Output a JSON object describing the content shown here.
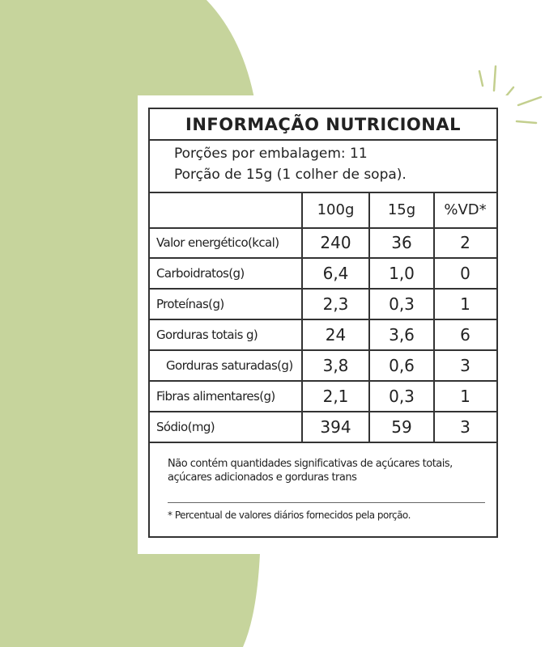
{
  "table": {
    "title": "INFORMAÇÃO NUTRICIONAL",
    "portions": [
      "Porções por embalagem: 11",
      "Porção de 15g (1 colher de sopa)."
    ],
    "header": [
      "100g",
      "15g",
      "%VD*"
    ],
    "rows": [
      [
        "Valor energético(kcal)",
        "240",
        "36",
        "2"
      ],
      [
        "Carboidratos(g)",
        "6,4",
        "1,0",
        "0"
      ],
      [
        "Proteínas(g)",
        "2,3",
        "0,3",
        "1"
      ],
      [
        "Gorduras totais g)",
        "24",
        "3,6",
        "6"
      ],
      [
        "Gorduras saturadas(g)",
        "3,8",
        "0,6",
        "3"
      ],
      [
        "Fibras alimentares(g)",
        "2,1",
        "0,3",
        "1"
      ],
      [
        "Sódio(mg)",
        "394",
        "59",
        "3"
      ]
    ],
    "notes": [
      "Não contém quantidades significativas de açúcares totais, açúcares adicionados e gorduras trans",
      "* Percentual de valores diários fornecidos pela porção."
    ]
  }
}
